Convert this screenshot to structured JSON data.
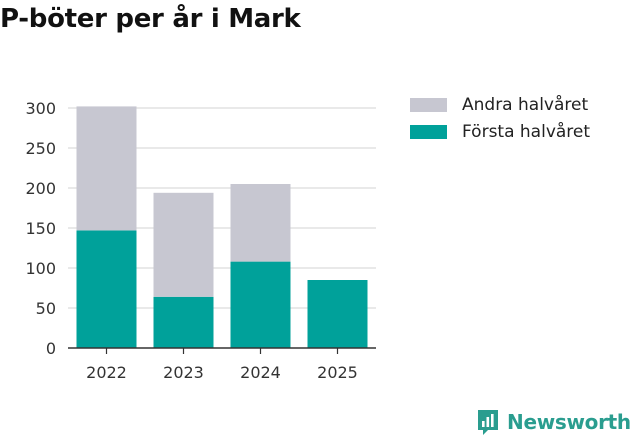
{
  "chart_data": {
    "type": "bar",
    "stacked": true,
    "title": "P-böter per år i Mark",
    "categories": [
      "2022",
      "2023",
      "2024",
      "2025"
    ],
    "series": [
      {
        "name": "Första halvåret",
        "color": "#00a19a",
        "values": [
          147,
          64,
          108,
          85
        ]
      },
      {
        "name": "Andra halvåret",
        "color": "#c7c7d1",
        "values": [
          155,
          130,
          97,
          0
        ]
      }
    ],
    "ylim": [
      0,
      300
    ],
    "yticks": [
      0,
      50,
      100,
      150,
      200,
      250,
      300
    ],
    "grid": true,
    "legend_position": "right",
    "xlabel": "",
    "ylabel": ""
  },
  "legend": {
    "items": [
      {
        "label": "Andra halvåret",
        "color": "#c7c7d1"
      },
      {
        "label": "Första halvåret",
        "color": "#00a19a"
      }
    ]
  },
  "brand": {
    "name": "Newsworthy",
    "icon": "newsworthy-logo-icon",
    "color": "#2a9d8f"
  }
}
